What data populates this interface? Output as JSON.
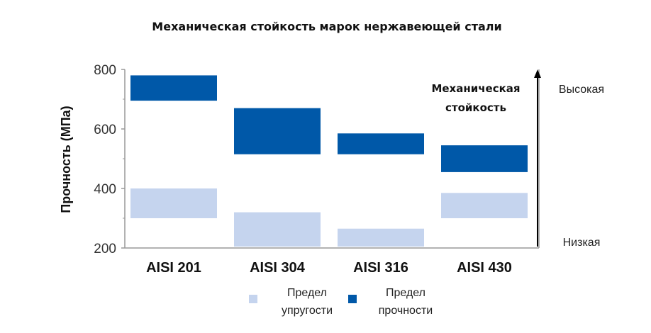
{
  "chart_data": {
    "type": "bar",
    "title": "Механическая стойкость марок нержавеющей стали",
    "xlabel": "",
    "ylabel": "Прочность (МПа)",
    "ylim": [
      200,
      800
    ],
    "yticks": [
      200,
      400,
      600,
      800
    ],
    "categories": [
      "AISI 201",
      "AISI 304",
      "AISI 316",
      "AISI 430"
    ],
    "series": [
      {
        "name": "Предел упругости",
        "color": "#c5d4ee",
        "ranges": [
          [
            300,
            400
          ],
          [
            200,
            320
          ],
          [
            200,
            265
          ],
          [
            300,
            385
          ]
        ]
      },
      {
        "name": "Предел прочности",
        "color": "#0058a8",
        "ranges": [
          [
            695,
            780
          ],
          [
            515,
            670
          ],
          [
            515,
            585
          ],
          [
            455,
            545
          ]
        ]
      }
    ],
    "annotation": {
      "text_line1": "Механическая",
      "text_line2": "стойкость",
      "high_label": "Высокая",
      "low_label": "Низкая"
    },
    "legend": {
      "position": "bottom",
      "items": [
        {
          "line1": "Предел",
          "line2": "упругости",
          "color": "#c5d4ee"
        },
        {
          "line1": "Предел",
          "line2": "прочности",
          "color": "#0058a8"
        }
      ]
    },
    "grid": false
  }
}
